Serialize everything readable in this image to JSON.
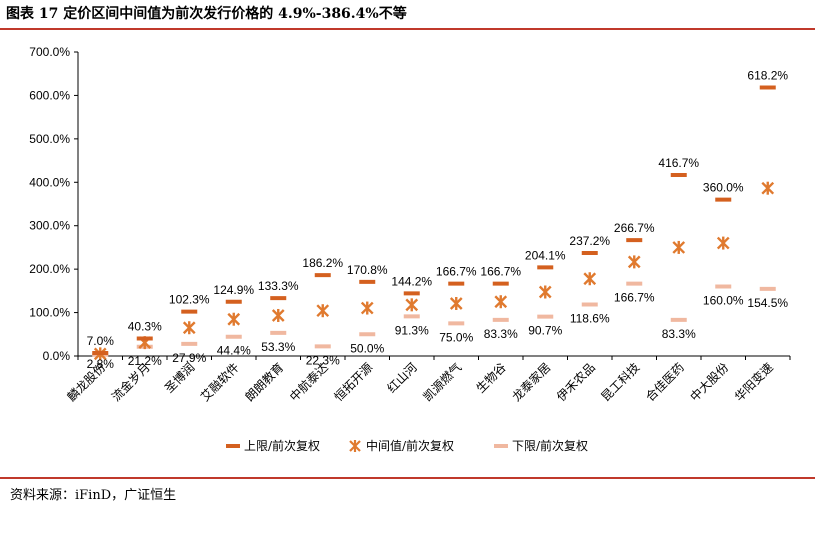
{
  "title": "图表 17 定价区间中间值为前次发行价格的 4.9%-386.4%不等",
  "source": "资料来源：iFinD，广证恒生",
  "chart_data": {
    "type": "scatter",
    "categories": [
      "麟龙股份",
      "流金岁月",
      "圣博润",
      "艾融软件",
      "朗朗教育",
      "中航泰达",
      "恒拓开源",
      "红山河",
      "凯源燃气",
      "生物谷",
      "龙泰家居",
      "伊禾农品",
      "昆工科技",
      "合佳医药",
      "中大股份",
      "华阳变速"
    ],
    "ylim": [
      0,
      700
    ],
    "yticks": [
      "0.0%",
      "100.0%",
      "200.0%",
      "300.0%",
      "400.0%",
      "500.0%",
      "600.0%",
      "700.0%"
    ],
    "series": [
      {
        "name": "上限/前次复权",
        "marker": "dash",
        "color": "#d4601f",
        "values": [
          7.0,
          40.3,
          102.3,
          124.9,
          133.3,
          186.2,
          170.8,
          144.2,
          166.7,
          166.7,
          204.1,
          237.2,
          266.7,
          416.7,
          360.0,
          618.2
        ],
        "labels": [
          "7.0%",
          "40.3%",
          "102.3%",
          "124.9%",
          "133.3%",
          "186.2%",
          "170.8%",
          "144.2%",
          "166.7%",
          "166.7%",
          "204.1%",
          "237.2%",
          "266.7%",
          "416.7%",
          "360.0%",
          "618.2%"
        ]
      },
      {
        "name": "中间值/前次复权",
        "marker": "star",
        "color": "#e07a2f",
        "values": [
          4.9,
          30.8,
          65.1,
          84.7,
          93.3,
          104.3,
          110.4,
          117.8,
          120.9,
          125.0,
          147.4,
          177.9,
          216.7,
          250.0,
          260.0,
          386.4
        ]
      },
      {
        "name": "下限/前次复权",
        "marker": "dash",
        "color": "#f0b8a0",
        "values": [
          2.8,
          21.2,
          27.9,
          44.4,
          53.3,
          22.3,
          50.0,
          91.3,
          75.0,
          83.3,
          90.7,
          118.6,
          166.7,
          83.3,
          160.0,
          154.5
        ],
        "labels": [
          "2.8%",
          "21.2%",
          "27.9%",
          "44.4%",
          "53.3%",
          "22.3%",
          "50.0%",
          "91.3%",
          "75.0%",
          "83.3%",
          "90.7%",
          "118.6%",
          "166.7%",
          "83.3%",
          "160.0%",
          "154.5%"
        ]
      }
    ],
    "legend": "bottom"
  }
}
